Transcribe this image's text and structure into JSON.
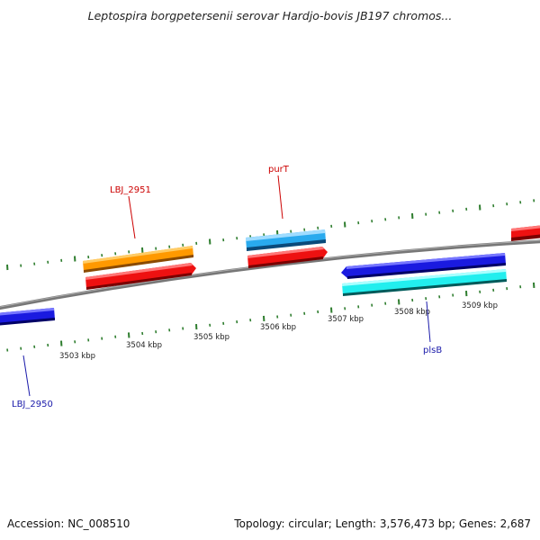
{
  "title": "Leptospira borgpetersenii serovar Hardjo-bovis JB197 chromos...",
  "footer": {
    "accession": "Accession: NC_008510",
    "summary": "Topology: circular; Length: 3,576,473 bp; Genes: 2,687"
  },
  "ticks": [
    "3503 kbp",
    "3504 kbp",
    "3505 kbp",
    "3506 kbp",
    "3507 kbp",
    "3508 kbp",
    "3509 kbp"
  ],
  "genes": {
    "lbj2951": "LBJ_2951",
    "purT": "purT",
    "lbj2950": "LBJ_2950",
    "plsB": "plsB"
  },
  "colors": {
    "backbone": "#808080",
    "tick": "#2e7d2e",
    "orange": "#ff9900",
    "red": "#ee1111",
    "skyblue": "#29aaee",
    "blue": "#1a1ae0",
    "cyan": "#22eeee",
    "label_red": "#cc0000",
    "label_blue": "#1a1aaa"
  }
}
